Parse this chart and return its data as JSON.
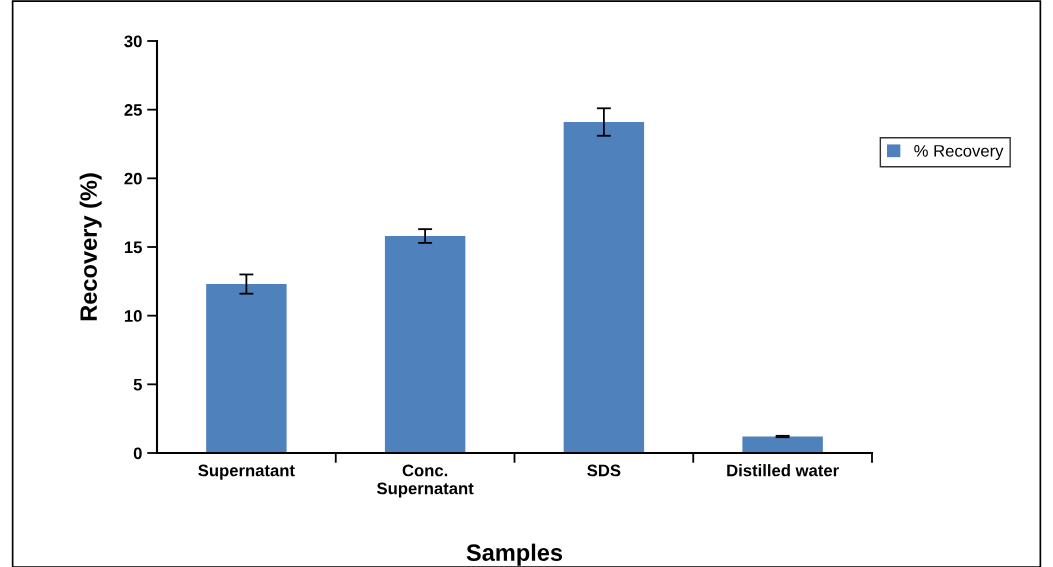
{
  "chart_data": {
    "type": "bar",
    "xlabel": "Samples",
    "ylabel": "Recovery (%)",
    "categories": [
      "Supernatant",
      "Conc.\nSupernatant",
      "SDS",
      "Distilled water"
    ],
    "series": [
      {
        "name": "% Recovery",
        "color": "#4f81bd",
        "values": [
          12.3,
          15.8,
          24.1,
          1.2
        ],
        "errors": [
          0.7,
          0.5,
          1.0,
          0.05
        ]
      }
    ],
    "ylim": [
      0,
      30
    ],
    "yticks": [
      0,
      5,
      10,
      15,
      20,
      25,
      30
    ],
    "grid": false,
    "legend": "right"
  }
}
